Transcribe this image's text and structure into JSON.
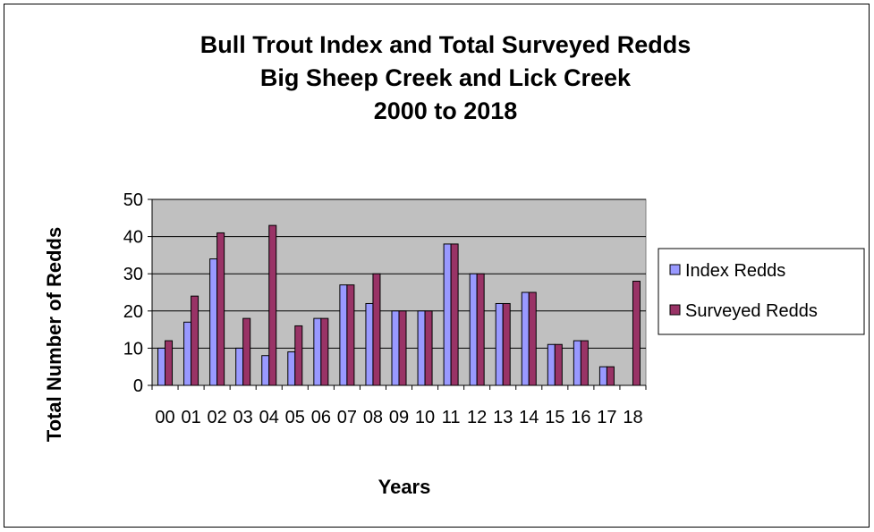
{
  "chart_data": {
    "type": "bar",
    "title_lines": [
      "Bull Trout Index and Total Surveyed Redds",
      "Big Sheep Creek and Lick Creek",
      "2000 to 2018"
    ],
    "xlabel": "Years",
    "ylabel": "Total Number of Redds",
    "ylim": [
      0,
      50
    ],
    "yticks": [
      "0",
      "10",
      "20",
      "30",
      "40",
      "50"
    ],
    "categories": [
      "00",
      "01",
      "02",
      "03",
      "04",
      "05",
      "06",
      "07",
      "08",
      "09",
      "10",
      "11",
      "12",
      "13",
      "14",
      "15",
      "16",
      "17",
      "18"
    ],
    "series": [
      {
        "name": "Index Redds",
        "color": "#9999ff",
        "values": [
          10,
          17,
          34,
          10,
          8,
          9,
          18,
          27,
          22,
          20,
          20,
          38,
          30,
          22,
          25,
          11,
          12,
          5,
          0
        ]
      },
      {
        "name": "Surveyed Redds",
        "color": "#993366",
        "values": [
          12,
          24,
          41,
          18,
          43,
          16,
          18,
          27,
          30,
          20,
          20,
          38,
          30,
          22,
          25,
          11,
          12,
          5,
          28
        ]
      }
    ],
    "plot_background": "#c0c0c0",
    "grid": true,
    "legend_position": "right"
  }
}
